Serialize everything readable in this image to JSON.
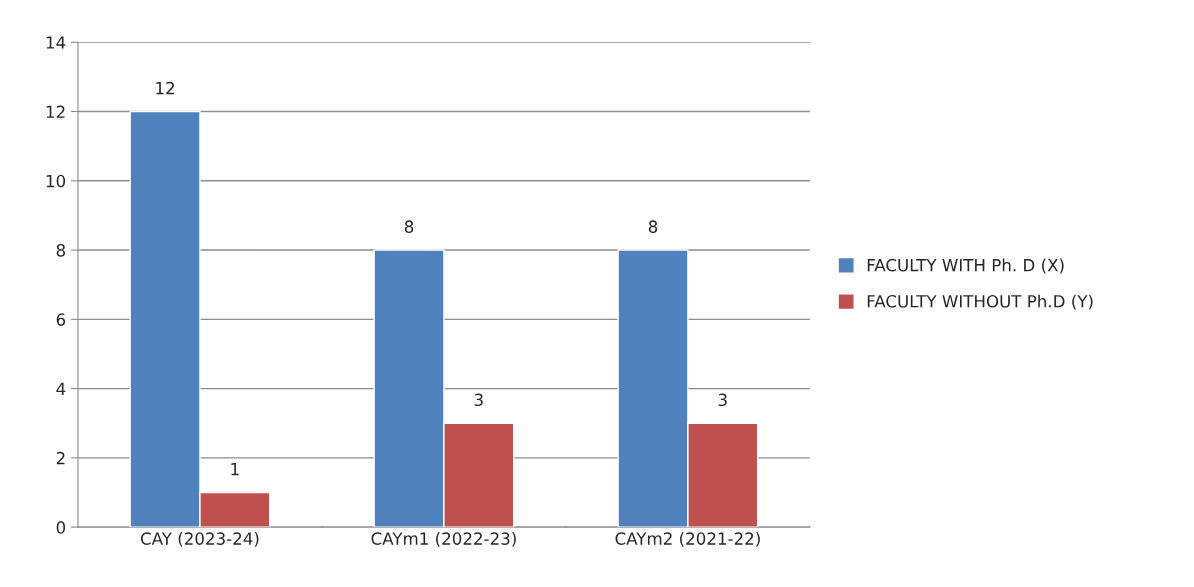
{
  "chart_data": {
    "type": "bar",
    "categories": [
      "CAY (2023-24)",
      "CAYm1 (2022-23)",
      "CAYm2 (2021-22)"
    ],
    "series": [
      {
        "name": "FACULTY WITH Ph. D (X)",
        "color": "#4f81bd",
        "values": [
          12,
          8,
          8
        ]
      },
      {
        "name": "FACULTY WITHOUT Ph.D (Y)",
        "color": "#c0504d",
        "values": [
          1,
          3,
          3
        ]
      }
    ],
    "ylim": [
      0,
      14
    ],
    "yticks": [
      0,
      2,
      4,
      6,
      8,
      10,
      12,
      14
    ],
    "grid": "y",
    "legend": "right",
    "data_labels": true
  }
}
